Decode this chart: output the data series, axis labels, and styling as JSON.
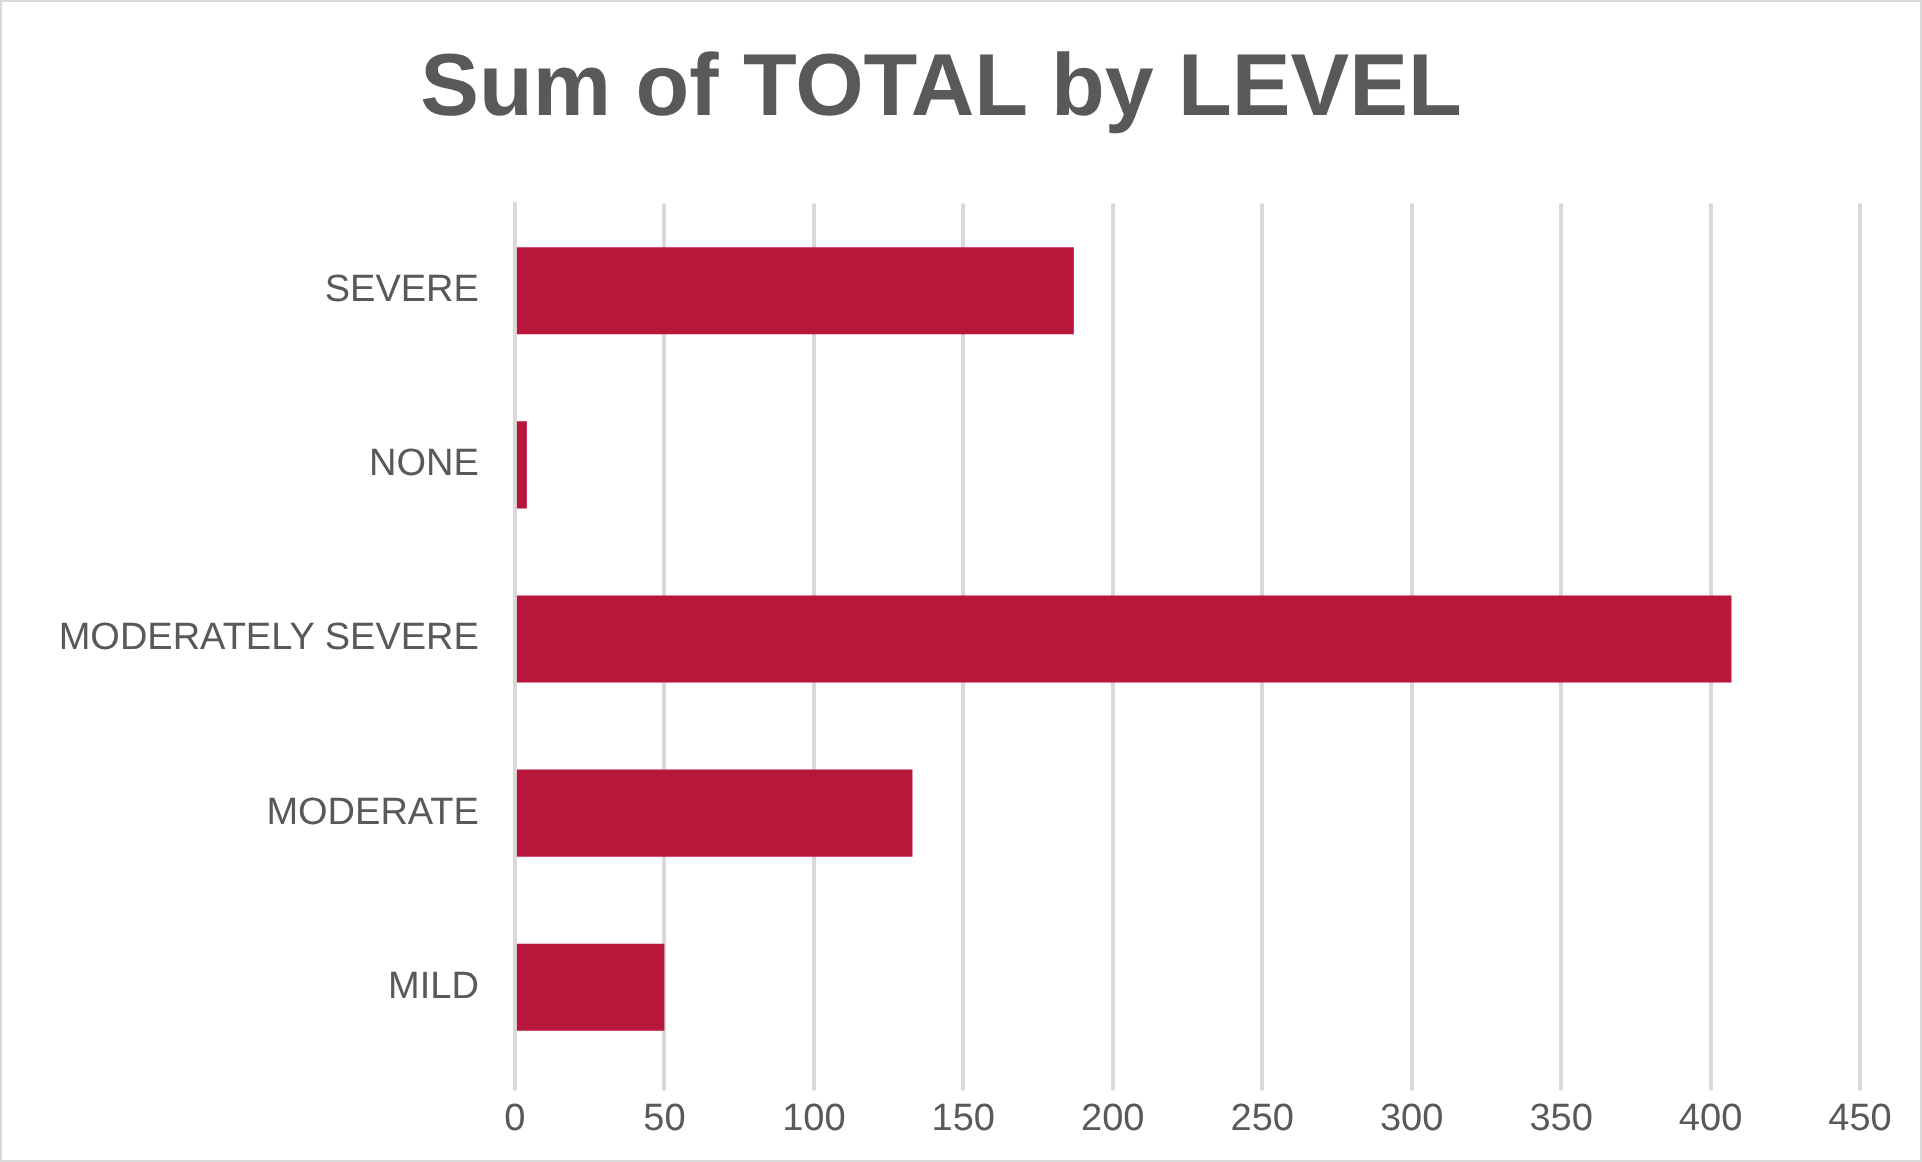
{
  "chart_data": {
    "type": "bar",
    "orientation": "horizontal",
    "title": "Sum of TOTAL by LEVEL",
    "categories": [
      "SEVERE",
      "NONE",
      "MODERATELY SEVERE",
      "MODERATE",
      "MILD"
    ],
    "values": [
      187,
      4,
      407,
      133,
      50
    ],
    "color": "#b9163c",
    "xlim": [
      0,
      450
    ],
    "xticks": [
      0,
      50,
      100,
      150,
      200,
      250,
      300,
      350,
      400,
      450
    ],
    "grid": "x",
    "legend": false
  }
}
